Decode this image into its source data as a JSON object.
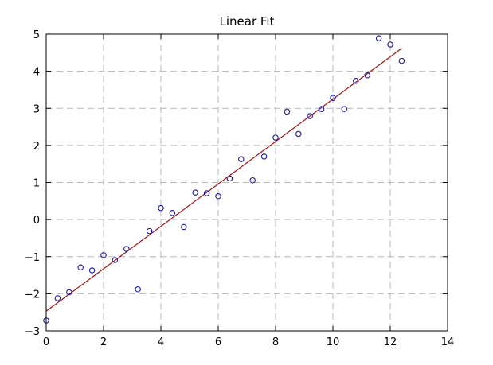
{
  "chart_data": {
    "type": "scatter",
    "title": "Linear Fit",
    "xlabel": "",
    "ylabel": "",
    "xlim": [
      0,
      14
    ],
    "ylim": [
      -3,
      5
    ],
    "xticks": [
      "0",
      "2",
      "4",
      "6",
      "8",
      "10",
      "12",
      "14"
    ],
    "yticks": [
      "−3",
      "−2",
      "−1",
      "0",
      "1",
      "2",
      "3",
      "4",
      "5"
    ],
    "grid": true,
    "colors": {
      "points": "#1a1aaa",
      "fit_line": "#b01010",
      "grid": "#b8b8b8"
    },
    "series": [
      {
        "type": "scatter",
        "x": [
          0.0,
          0.4,
          0.8,
          1.2,
          1.6,
          2.0,
          2.4,
          2.8,
          3.2,
          3.6,
          4.0,
          4.4,
          4.8,
          5.2,
          5.6,
          6.0,
          6.4,
          6.8,
          7.2,
          7.6,
          8.0,
          8.4,
          8.8,
          9.2,
          9.6,
          10.0,
          10.4,
          10.8,
          11.2,
          11.6,
          12.0,
          12.4
        ],
        "y": [
          -2.72,
          -2.12,
          -1.96,
          -1.29,
          -1.37,
          -0.96,
          -1.09,
          -0.79,
          -1.88,
          -0.31,
          0.31,
          0.18,
          -0.2,
          0.73,
          0.71,
          0.63,
          1.11,
          1.63,
          1.06,
          1.7,
          2.21,
          2.91,
          2.31,
          2.79,
          2.98,
          3.28,
          2.98,
          3.74,
          3.89,
          4.89,
          4.72,
          4.28
        ]
      },
      {
        "type": "line",
        "x": [
          0.0,
          12.4
        ],
        "y": [
          -2.47,
          4.62
        ]
      }
    ]
  }
}
